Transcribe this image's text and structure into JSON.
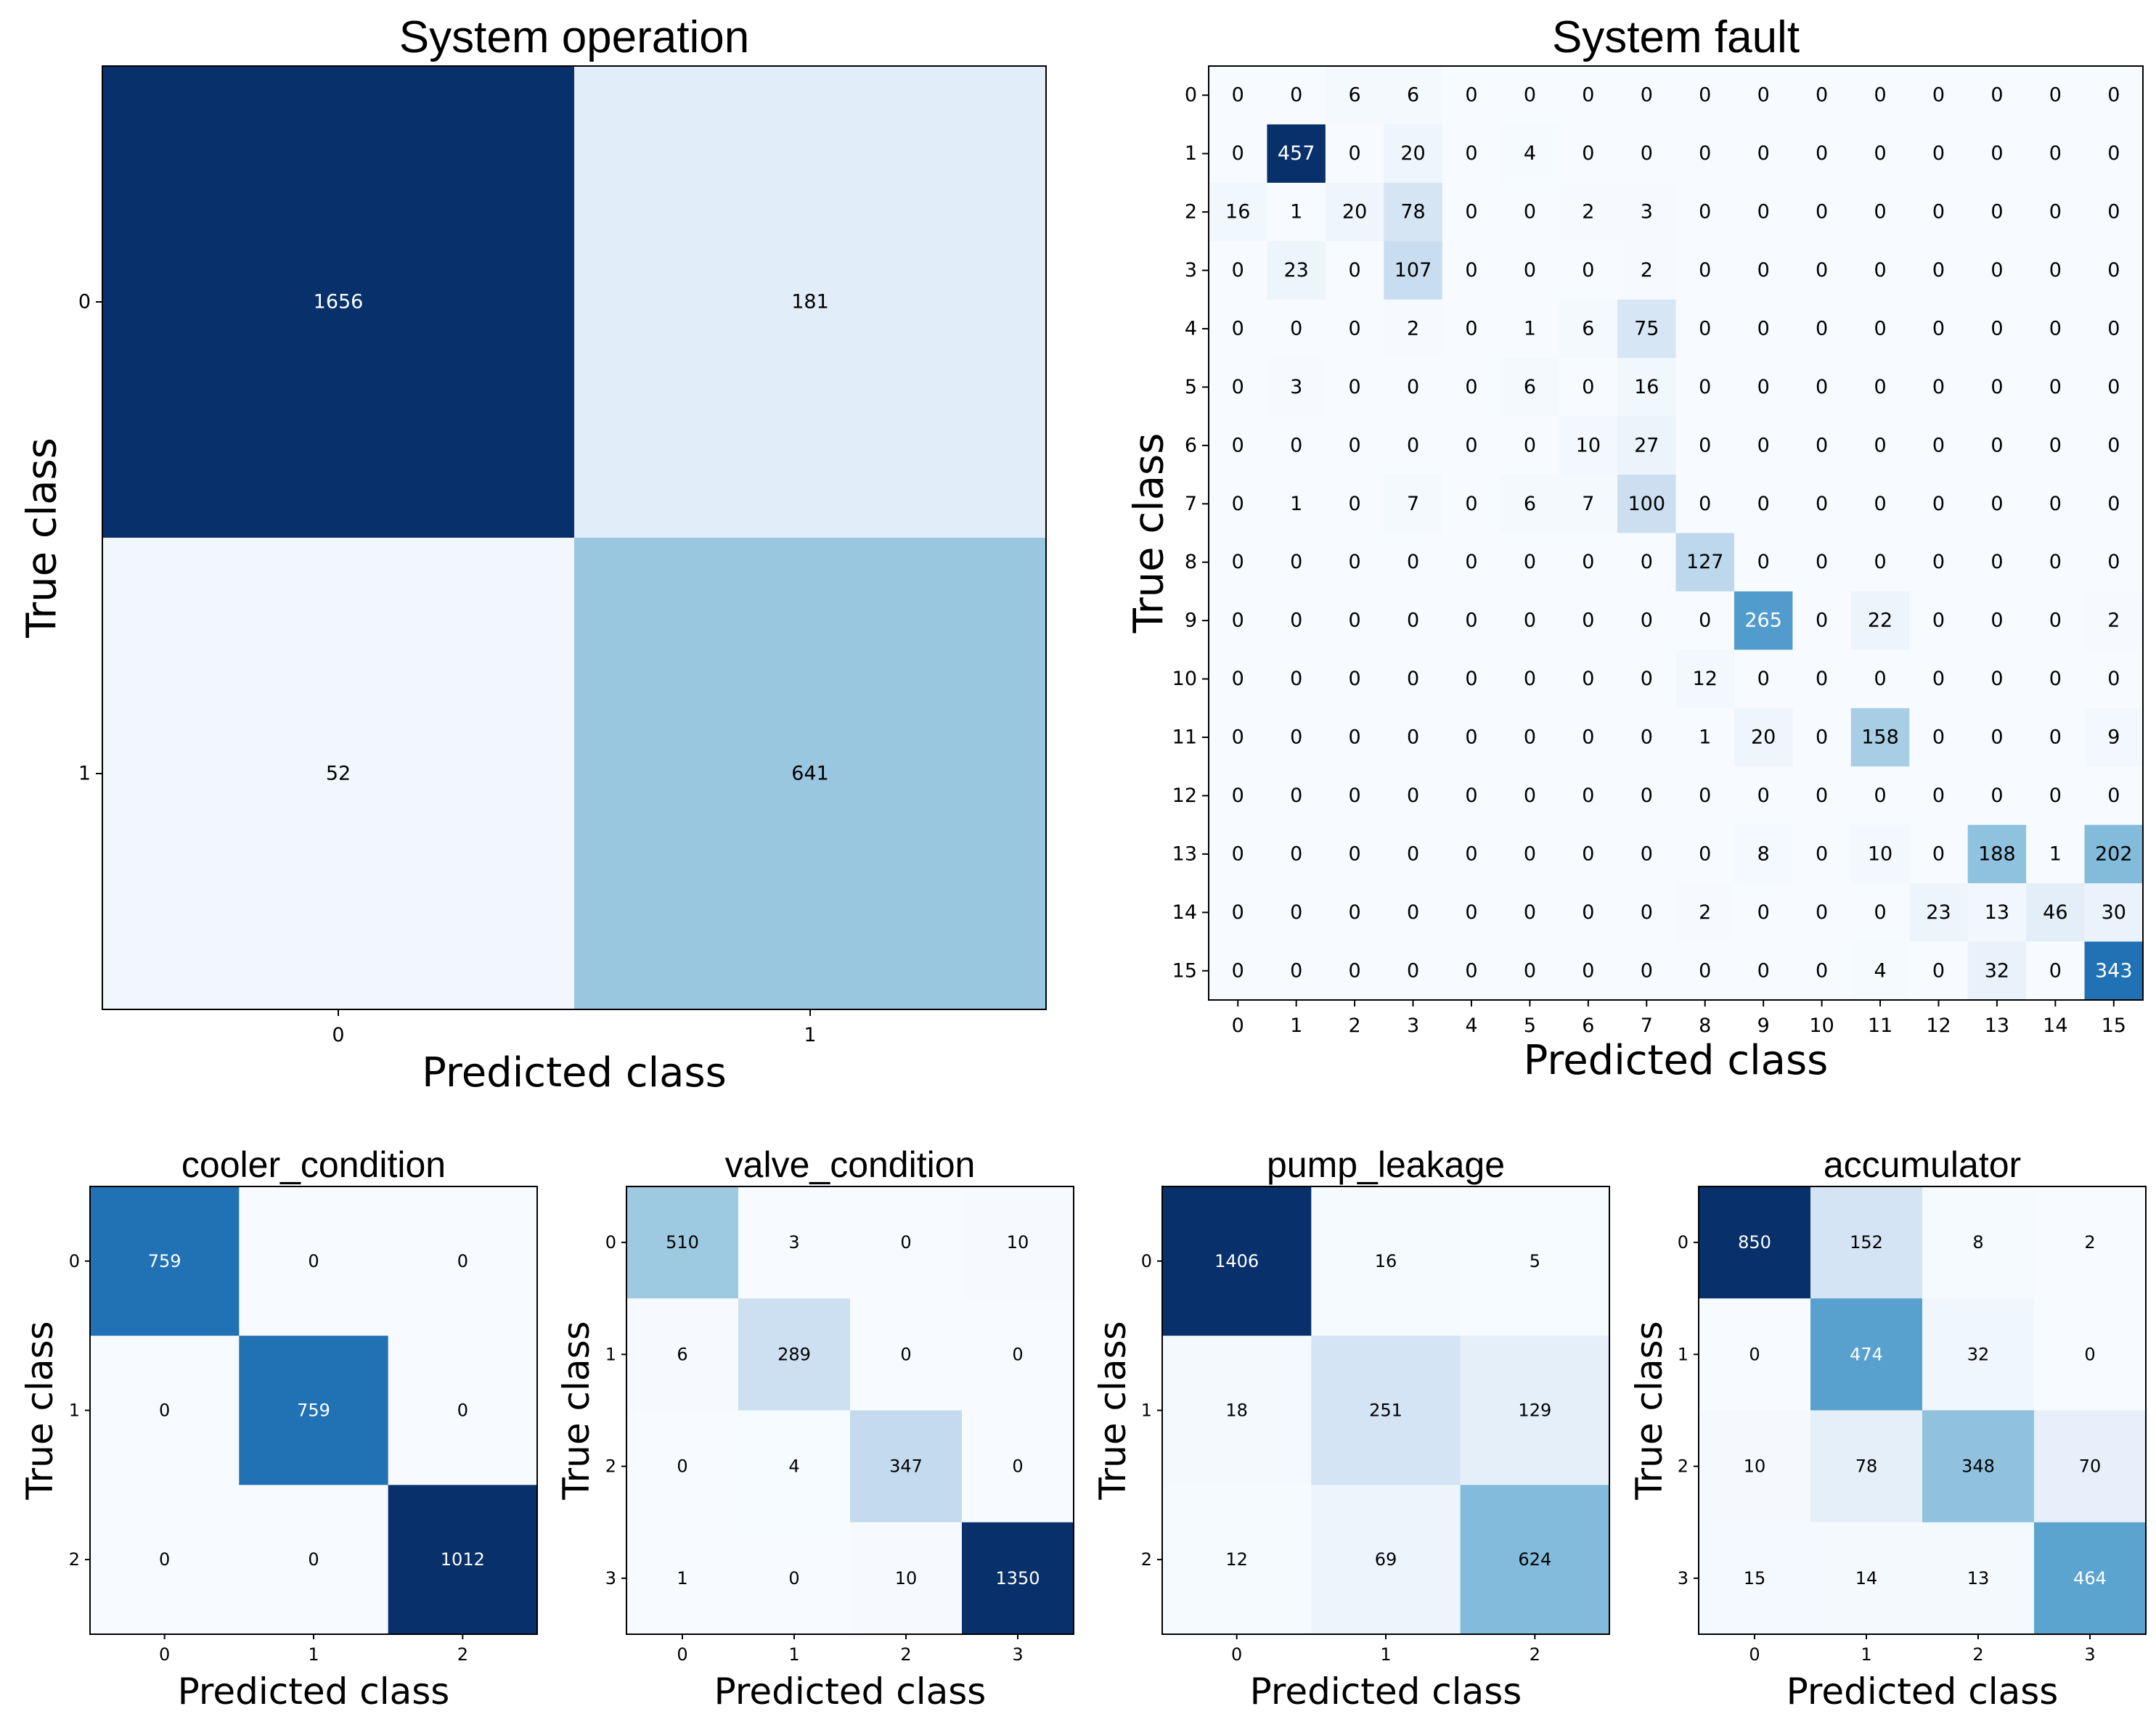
{
  "chart_data": [
    {
      "type": "heatmap",
      "title": "System operation",
      "xlabel": "Predicted class",
      "ylabel": "True class",
      "labels": [
        "0",
        "1"
      ],
      "matrix": [
        [
          1656,
          181
        ],
        [
          52,
          641
        ]
      ]
    },
    {
      "type": "heatmap",
      "title": "System fault",
      "xlabel": "Predicted class",
      "ylabel": "True class",
      "labels": [
        "0",
        "1",
        "2",
        "3",
        "4",
        "5",
        "6",
        "7",
        "8",
        "9",
        "10",
        "11",
        "12",
        "13",
        "14",
        "15"
      ],
      "matrix": [
        [
          0,
          0,
          6,
          6,
          0,
          0,
          0,
          0,
          0,
          0,
          0,
          0,
          0,
          0,
          0,
          0
        ],
        [
          0,
          457,
          0,
          20,
          0,
          4,
          0,
          0,
          0,
          0,
          0,
          0,
          0,
          0,
          0,
          0
        ],
        [
          16,
          1,
          20,
          78,
          0,
          0,
          2,
          3,
          0,
          0,
          0,
          0,
          0,
          0,
          0,
          0
        ],
        [
          0,
          23,
          0,
          107,
          0,
          0,
          0,
          2,
          0,
          0,
          0,
          0,
          0,
          0,
          0,
          0
        ],
        [
          0,
          0,
          0,
          2,
          0,
          1,
          6,
          75,
          0,
          0,
          0,
          0,
          0,
          0,
          0,
          0
        ],
        [
          0,
          3,
          0,
          0,
          0,
          6,
          0,
          16,
          0,
          0,
          0,
          0,
          0,
          0,
          0,
          0
        ],
        [
          0,
          0,
          0,
          0,
          0,
          0,
          10,
          27,
          0,
          0,
          0,
          0,
          0,
          0,
          0,
          0
        ],
        [
          0,
          1,
          0,
          7,
          0,
          6,
          7,
          100,
          0,
          0,
          0,
          0,
          0,
          0,
          0,
          0
        ],
        [
          0,
          0,
          0,
          0,
          0,
          0,
          0,
          0,
          127,
          0,
          0,
          0,
          0,
          0,
          0,
          0
        ],
        [
          0,
          0,
          0,
          0,
          0,
          0,
          0,
          0,
          0,
          265,
          0,
          22,
          0,
          0,
          0,
          2
        ],
        [
          0,
          0,
          0,
          0,
          0,
          0,
          0,
          0,
          12,
          0,
          0,
          0,
          0,
          0,
          0,
          0
        ],
        [
          0,
          0,
          0,
          0,
          0,
          0,
          0,
          0,
          1,
          20,
          0,
          158,
          0,
          0,
          0,
          9
        ],
        [
          0,
          0,
          0,
          0,
          0,
          0,
          0,
          0,
          0,
          0,
          0,
          0,
          0,
          0,
          0,
          0
        ],
        [
          0,
          0,
          0,
          0,
          0,
          0,
          0,
          0,
          0,
          8,
          0,
          10,
          0,
          188,
          1,
          202
        ],
        [
          0,
          0,
          0,
          0,
          0,
          0,
          0,
          0,
          2,
          0,
          0,
          0,
          23,
          13,
          46,
          30
        ],
        [
          0,
          0,
          0,
          0,
          0,
          0,
          0,
          0,
          0,
          0,
          0,
          4,
          0,
          32,
          0,
          343
        ]
      ]
    },
    {
      "type": "heatmap",
      "title": "cooler_condition",
      "xlabel": "Predicted class",
      "ylabel": "True class",
      "labels": [
        "0",
        "1",
        "2"
      ],
      "matrix": [
        [
          759,
          0,
          0
        ],
        [
          0,
          759,
          0
        ],
        [
          0,
          0,
          1012
        ]
      ]
    },
    {
      "type": "heatmap",
      "title": "valve_condition",
      "xlabel": "Predicted class",
      "ylabel": "True class",
      "labels": [
        "0",
        "1",
        "2",
        "3"
      ],
      "matrix": [
        [
          510,
          3,
          0,
          10
        ],
        [
          6,
          289,
          0,
          0
        ],
        [
          0,
          4,
          347,
          0
        ],
        [
          1,
          0,
          10,
          1350
        ]
      ]
    },
    {
      "type": "heatmap",
      "title": "pump_leakage",
      "xlabel": "Predicted class",
      "ylabel": "True class",
      "labels": [
        "0",
        "1",
        "2"
      ],
      "matrix": [
        [
          1406,
          16,
          5
        ],
        [
          18,
          251,
          129
        ],
        [
          12,
          69,
          624
        ]
      ]
    },
    {
      "type": "heatmap",
      "title": "accumulator",
      "xlabel": "Predicted class",
      "ylabel": "True class",
      "labels": [
        "0",
        "1",
        "2",
        "3"
      ],
      "matrix": [
        [
          850,
          152,
          8,
          2
        ],
        [
          0,
          474,
          32,
          0
        ],
        [
          10,
          78,
          348,
          70
        ],
        [
          15,
          14,
          13,
          464
        ]
      ]
    }
  ]
}
